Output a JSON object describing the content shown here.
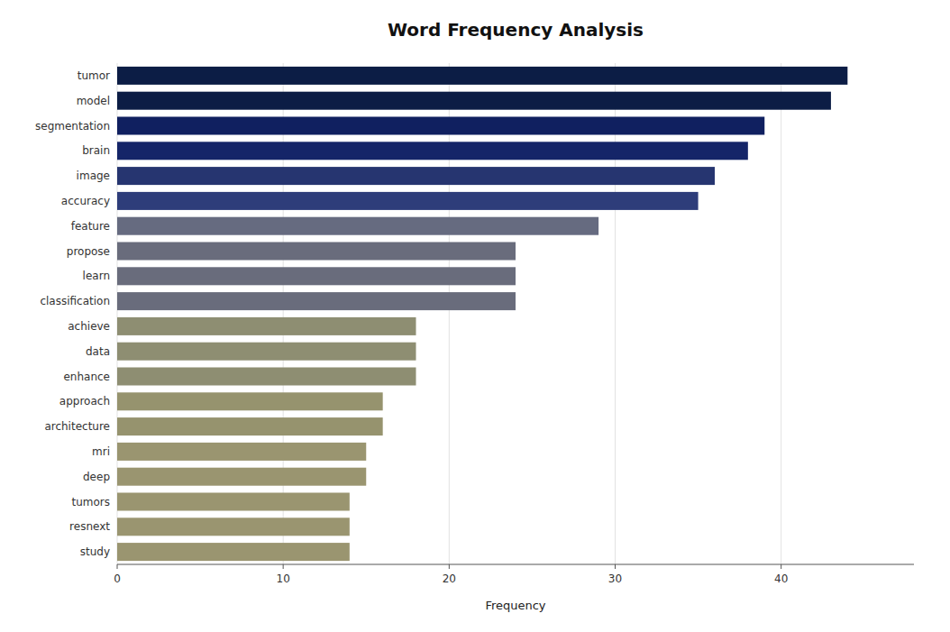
{
  "chart_data": {
    "type": "bar",
    "orientation": "horizontal",
    "title": "Word Frequency Analysis",
    "xlabel": "Frequency",
    "categories": [
      "tumor",
      "model",
      "segmentation",
      "brain",
      "image",
      "accuracy",
      "feature",
      "propose",
      "learn",
      "classification",
      "achieve",
      "data",
      "enhance",
      "approach",
      "architecture",
      "mri",
      "deep",
      "tumors",
      "resnext",
      "study"
    ],
    "values": [
      44,
      43,
      39,
      38,
      36,
      35,
      29,
      24,
      24,
      24,
      18,
      18,
      18,
      16,
      16,
      15,
      15,
      14,
      14,
      14
    ],
    "colors": [
      "#0c1d45",
      "#0c1d45",
      "#102060",
      "#152568",
      "#263570",
      "#2e3d7a",
      "#666b80",
      "#696c7c",
      "#696c7c",
      "#696c7c",
      "#8e8e72",
      "#8e8e72",
      "#8e8e72",
      "#96936e",
      "#96936e",
      "#9a9570",
      "#9a9570",
      "#9a9570",
      "#9a9570",
      "#9a9570"
    ],
    "xlim": [
      0,
      48
    ],
    "xticks": [
      0,
      10,
      20,
      30,
      40
    ],
    "grid": true
  }
}
